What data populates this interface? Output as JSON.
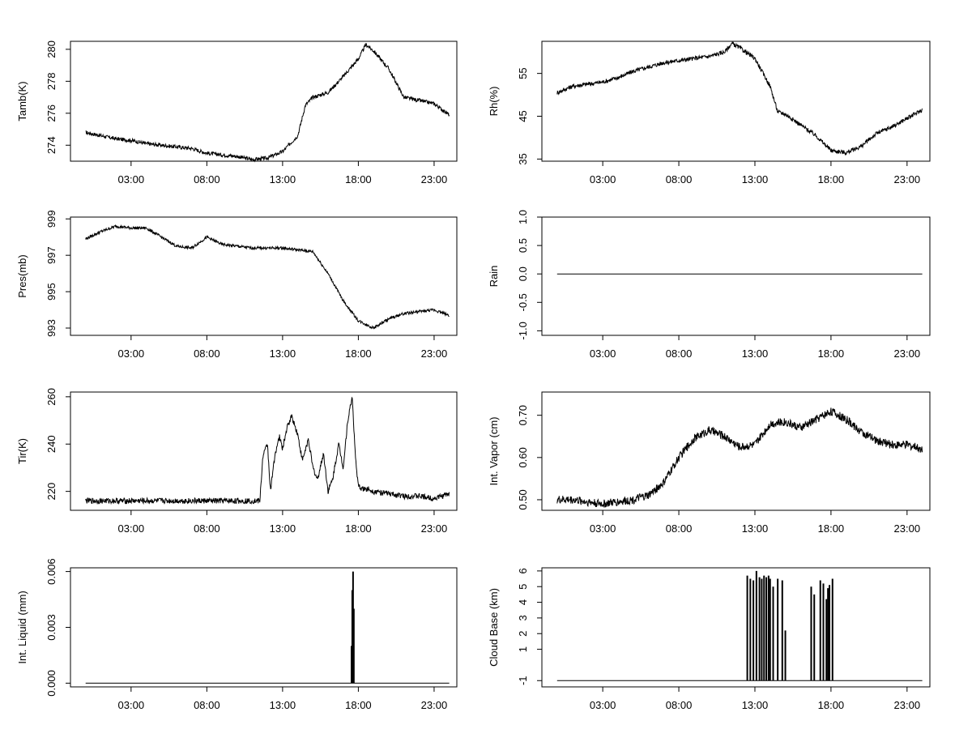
{
  "chart_data": [
    {
      "type": "line",
      "ylabel": "Tamb(K)",
      "x_ticks": [
        "03:00",
        "08:00",
        "13:00",
        "18:00",
        "23:00"
      ],
      "y_ticks": [
        "274",
        "276",
        "278",
        "280"
      ],
      "ylim": [
        273.0,
        280.5
      ],
      "xlim": [
        -1.0,
        24.5
      ],
      "series": [
        {
          "x": [
            0,
            1,
            2,
            3,
            4,
            5,
            6,
            7,
            8,
            9,
            10,
            11,
            12,
            13,
            14,
            14.5,
            15,
            16,
            17,
            18,
            18.5,
            19,
            20,
            21,
            22,
            23,
            24
          ],
          "y": [
            274.8,
            274.6,
            274.4,
            274.3,
            274.1,
            274.0,
            273.9,
            273.8,
            273.5,
            273.4,
            273.3,
            273.1,
            273.2,
            273.6,
            274.6,
            276.5,
            277.0,
            277.3,
            278.3,
            279.4,
            280.3,
            279.9,
            278.8,
            277.0,
            276.8,
            276.6,
            275.9
          ]
        }
      ]
    },
    {
      "type": "line",
      "ylabel": "Rh(%)",
      "x_ticks": [
        "03:00",
        "08:00",
        "13:00",
        "18:00",
        "23:00"
      ],
      "y_ticks": [
        "35",
        "45",
        "55"
      ],
      "ylim": [
        34.5,
        62.5
      ],
      "xlim": [
        -1.0,
        24.5
      ],
      "series": [
        {
          "x": [
            0,
            1,
            2,
            3,
            4,
            5,
            6,
            7,
            8,
            9,
            10,
            11,
            11.5,
            12,
            13,
            14,
            14.5,
            15,
            16,
            17,
            18,
            19,
            20,
            21,
            22,
            23,
            24
          ],
          "y": [
            50.5,
            52.0,
            52.5,
            53.0,
            54.0,
            55.5,
            56.5,
            57.5,
            58.0,
            58.5,
            59.0,
            60.0,
            62.0,
            61.0,
            58.5,
            52.0,
            46.0,
            45.5,
            43.0,
            40.5,
            37.0,
            36.5,
            38.0,
            41.0,
            42.5,
            44.5,
            46.5
          ]
        }
      ]
    },
    {
      "type": "line",
      "ylabel": "Pres(mb)",
      "x_ticks": [
        "03:00",
        "08:00",
        "13:00",
        "18:00",
        "23:00"
      ],
      "y_ticks": [
        "993",
        "995",
        "997",
        "999"
      ],
      "ylim": [
        992.6,
        999.1
      ],
      "xlim": [
        -1.0,
        24.5
      ],
      "series": [
        {
          "x": [
            0,
            1,
            2,
            3,
            4,
            5,
            6,
            7,
            8,
            9,
            10,
            11,
            12,
            13,
            14,
            15,
            16,
            17,
            18,
            19,
            20,
            21,
            22,
            23,
            24
          ],
          "y": [
            997.9,
            998.3,
            998.6,
            998.5,
            998.5,
            998.0,
            997.5,
            997.4,
            998.0,
            997.6,
            997.5,
            997.4,
            997.4,
            997.4,
            997.3,
            997.2,
            996.0,
            994.5,
            993.4,
            993.0,
            993.5,
            993.8,
            993.9,
            994.0,
            993.7
          ]
        }
      ]
    },
    {
      "type": "line",
      "ylabel": "Rain",
      "x_ticks": [
        "03:00",
        "08:00",
        "13:00",
        "18:00",
        "23:00"
      ],
      "y_ticks": [
        "-1.0",
        "-0.5",
        "0.0",
        "0.5",
        "1.0"
      ],
      "ylim": [
        -1.08,
        1.0
      ],
      "xlim": [
        -1.0,
        24.5
      ],
      "series": [
        {
          "x": [
            0,
            24
          ],
          "y": [
            0,
            0
          ]
        }
      ]
    },
    {
      "type": "line",
      "ylabel": "Tir(K)",
      "x_ticks": [
        "03:00",
        "08:00",
        "13:00",
        "18:00",
        "23:00"
      ],
      "y_ticks": [
        "220",
        "240",
        "260"
      ],
      "ylim": [
        212.0,
        262.0
      ],
      "xlim": [
        -1.0,
        24.5
      ],
      "series": [
        {
          "x": [
            0,
            2,
            4,
            6,
            8,
            10,
            11.5,
            11.7,
            12,
            12.2,
            12.5,
            12.8,
            13,
            13.3,
            13.6,
            14,
            14.3,
            14.7,
            15,
            15.3,
            15.7,
            16,
            16.3,
            16.7,
            17,
            17.3,
            17.6,
            17.8,
            18,
            18.3,
            18.7,
            19,
            20,
            21,
            22,
            23,
            24
          ],
          "y": [
            216,
            216,
            216,
            216,
            216,
            216,
            216,
            235,
            240,
            220,
            236,
            243,
            238,
            247,
            252,
            244,
            233,
            242,
            230,
            225,
            236,
            220,
            225,
            240,
            230,
            250,
            260,
            235,
            222,
            221,
            221,
            220,
            219,
            218,
            218,
            217,
            219
          ]
        }
      ]
    },
    {
      "type": "line",
      "ylabel": "Int. Vapor (cm)",
      "x_ticks": [
        "03:00",
        "08:00",
        "13:00",
        "18:00",
        "23:00"
      ],
      "y_ticks": [
        "0.50",
        "0.60",
        "0.70"
      ],
      "ylim": [
        0.475,
        0.755
      ],
      "xlim": [
        -1.0,
        24.5
      ],
      "series": [
        {
          "x": [
            0,
            1,
            2,
            3,
            4,
            5,
            6,
            7,
            8,
            9,
            10,
            11,
            12,
            13,
            14,
            15,
            16,
            17,
            18,
            19,
            20,
            21,
            22,
            23,
            24
          ],
          "y": [
            0.5,
            0.5,
            0.495,
            0.49,
            0.495,
            0.5,
            0.51,
            0.54,
            0.6,
            0.645,
            0.665,
            0.65,
            0.625,
            0.63,
            0.68,
            0.685,
            0.67,
            0.69,
            0.71,
            0.69,
            0.66,
            0.64,
            0.63,
            0.63,
            0.62
          ]
        }
      ]
    },
    {
      "type": "bar",
      "ylabel": "Int. Liquid (mm)",
      "x_ticks": [
        "03:00",
        "08:00",
        "13:00",
        "18:00",
        "23:00"
      ],
      "y_ticks": [
        "0.000",
        "0.003",
        "0.006"
      ],
      "ylim": [
        -0.0002,
        0.0062
      ],
      "xlim": [
        -1.0,
        24.5
      ],
      "baseline": {
        "x": [
          0,
          24
        ],
        "y": [
          0,
          0
        ]
      },
      "spikes": [
        {
          "x": 17.55,
          "y": 0.002
        },
        {
          "x": 17.6,
          "y": 0.005
        },
        {
          "x": 17.65,
          "y": 0.006
        },
        {
          "x": 17.7,
          "y": 0.004
        }
      ]
    },
    {
      "type": "bar",
      "ylabel": "Cloud Base (km)",
      "x_ticks": [
        "03:00",
        "08:00",
        "13:00",
        "18:00",
        "23:00"
      ],
      "y_ticks": [
        "-1",
        "1",
        "2",
        "3",
        "4",
        "5",
        "6"
      ],
      "ylim": [
        -1.4,
        6.2
      ],
      "xlim": [
        -1.0,
        24.5
      ],
      "baseline": {
        "x": [
          0,
          24
        ],
        "y": [
          -1,
          -1
        ]
      },
      "spikes": [
        {
          "x": 12.5,
          "y": 5.7
        },
        {
          "x": 12.7,
          "y": 5.5
        },
        {
          "x": 12.9,
          "y": 5.4
        },
        {
          "x": 13.1,
          "y": 6.0
        },
        {
          "x": 13.3,
          "y": 5.6
        },
        {
          "x": 13.45,
          "y": 5.5
        },
        {
          "x": 13.6,
          "y": 5.7
        },
        {
          "x": 13.75,
          "y": 5.6
        },
        {
          "x": 13.9,
          "y": 5.7
        },
        {
          "x": 14.0,
          "y": 5.5
        },
        {
          "x": 14.2,
          "y": 5.0
        },
        {
          "x": 14.5,
          "y": 5.5
        },
        {
          "x": 14.8,
          "y": 5.4
        },
        {
          "x": 15.0,
          "y": 2.2
        },
        {
          "x": 16.7,
          "y": 5.0
        },
        {
          "x": 16.9,
          "y": 4.5
        },
        {
          "x": 17.3,
          "y": 5.4
        },
        {
          "x": 17.5,
          "y": 5.2
        },
        {
          "x": 17.7,
          "y": 4.2
        },
        {
          "x": 17.8,
          "y": 4.9
        },
        {
          "x": 17.9,
          "y": 5.1
        },
        {
          "x": 18.1,
          "y": 5.5
        }
      ]
    }
  ]
}
